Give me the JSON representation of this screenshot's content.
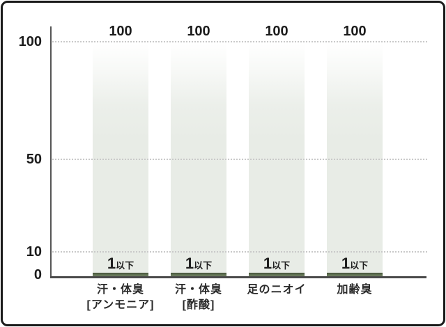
{
  "chart_data": {
    "type": "bar",
    "title": "",
    "categories": [
      "汗・体臭[アンモニア]",
      "汗・体臭[酢酸]",
      "足のニオイ",
      "加齢臭"
    ],
    "values": [
      100,
      100,
      100,
      100
    ],
    "value_labels": [
      "100",
      "100",
      "100",
      "100"
    ],
    "low_bar_labels": [
      "1以下",
      "1以下",
      "1以下",
      "1以下"
    ],
    "low_bar_values": [
      1,
      1,
      1,
      1
    ],
    "xlabel": "",
    "ylabel": "",
    "ylim": [
      0,
      100
    ],
    "y_ticks": [
      100,
      50,
      10,
      0
    ],
    "grid": "horizontal dotted lines at 100, 50, 10",
    "legend": "none"
  },
  "y_axis": {
    "ticks": [
      "100",
      "50",
      "10",
      "0"
    ]
  },
  "bars": [
    {
      "value": "100",
      "low_big": "1",
      "low_small": "以下",
      "label_line1": "汗・体臭",
      "label_line2": "[アンモニア]"
    },
    {
      "value": "100",
      "low_big": "1",
      "low_small": "以下",
      "label_line1": "汗・体臭",
      "label_line2": "[酢酸]"
    },
    {
      "value": "100",
      "low_big": "1",
      "low_small": "以下",
      "label_line1": "足のニオイ",
      "label_line2": ""
    },
    {
      "value": "100",
      "low_big": "1",
      "low_small": "以下",
      "label_line1": "加齢臭",
      "label_line2": ""
    }
  ],
  "colors": {
    "bar_fill": "#e8ece6",
    "low_bar": "#5a6c4d",
    "low_bar_edge": "#414d35",
    "axis": "#4a4a4a",
    "gridline": "#c9c9c9",
    "text": "#1c1c1c",
    "frame_border": "#1a1a1a"
  }
}
